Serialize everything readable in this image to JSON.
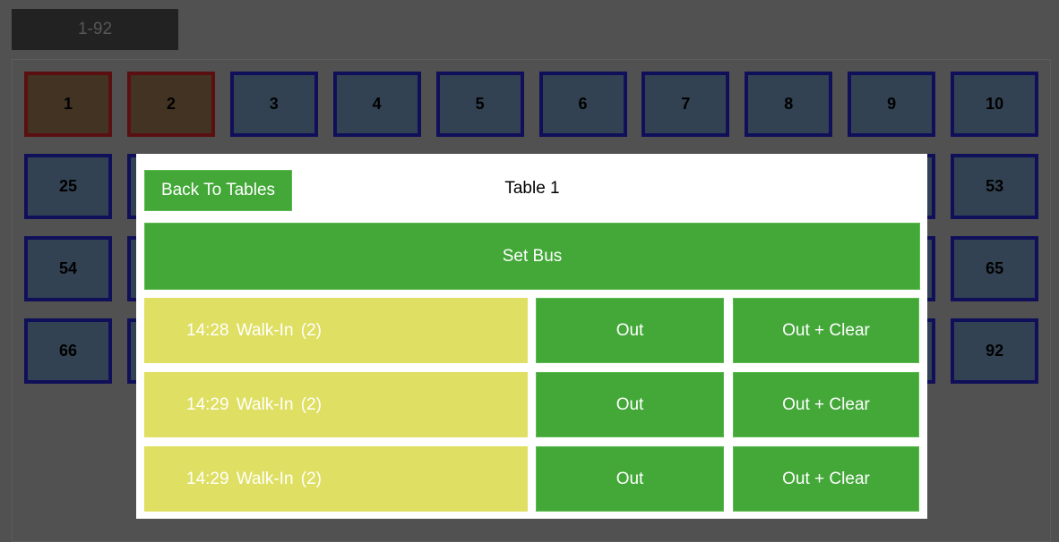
{
  "range_tab": "1-92",
  "tables": {
    "rows": [
      [
        {
          "label": "1",
          "status": "occupied"
        },
        {
          "label": "2",
          "status": "occupied"
        },
        {
          "label": "3"
        },
        {
          "label": "4"
        },
        {
          "label": "5"
        },
        {
          "label": "6"
        },
        {
          "label": "7"
        },
        {
          "label": "8"
        },
        {
          "label": "9"
        },
        {
          "label": "10"
        }
      ],
      [
        {
          "label": "25"
        },
        {},
        {},
        {},
        {},
        {},
        {},
        {},
        {},
        {
          "label": "53"
        }
      ],
      [
        {
          "label": "54"
        },
        {},
        {},
        {},
        {},
        {},
        {},
        {},
        {},
        {
          "label": "65"
        }
      ],
      [
        {
          "label": "66"
        },
        {},
        {},
        {},
        {},
        {},
        {},
        {},
        {},
        {
          "label": "92"
        }
      ]
    ]
  },
  "modal": {
    "back_label": "Back To Tables",
    "title": "Table 1",
    "set_bus_label": "Set Bus",
    "entries": [
      {
        "text": "14:28 Walk-In (2)",
        "out_label": "Out",
        "out_clear_label": "Out + Clear"
      },
      {
        "text": "14:29 Walk-In (2)",
        "out_label": "Out",
        "out_clear_label": "Out + Clear"
      },
      {
        "text": "14:29 Walk-In (2)",
        "out_label": "Out",
        "out_clear_label": "Out + Clear"
      }
    ]
  },
  "colors": {
    "green": "#43a838",
    "yellow": "#dfdf63",
    "occupied_border": "#5a1010",
    "free_border": "#10105a"
  }
}
